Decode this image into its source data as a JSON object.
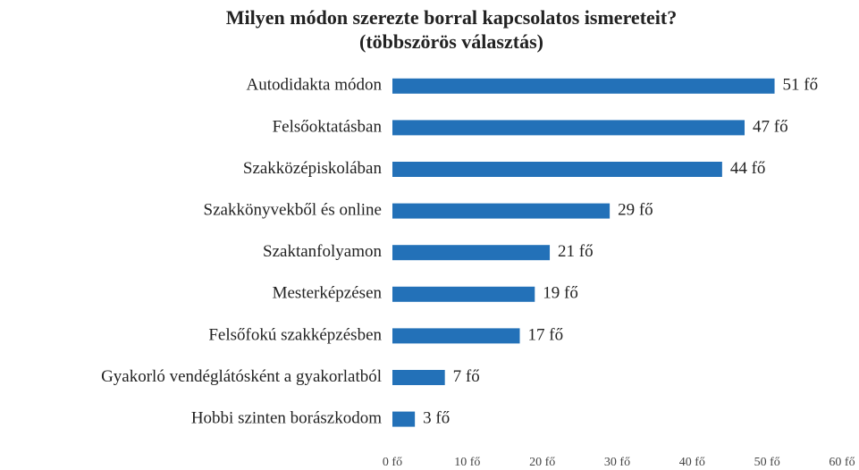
{
  "chart_data": {
    "type": "bar",
    "orientation": "horizontal",
    "title": "Milyen módon szerezte borral kapcsolatos ismereteit?",
    "subtitle": "(többszörös választás)",
    "categories": [
      "Autodidakta módon",
      "Felsőoktatásban",
      "Szakközépiskolában",
      "Szakkönyvekből és online",
      "Szaktanfolyamon",
      "Mesterképzésen",
      "Felsőfokú szakképzésben",
      "Gyakorló vendéglátósként a gyakorlatból",
      "Hobbi szinten borászkodom"
    ],
    "values": [
      51,
      47,
      44,
      29,
      21,
      19,
      17,
      7,
      3
    ],
    "value_labels": [
      "51 fő",
      "47 fő",
      "44 fő",
      "29 fő",
      "21 fő",
      "19 fő",
      "17 fő",
      "7 fő",
      "3 fő"
    ],
    "color": "#2371b8",
    "xlim": [
      0,
      60
    ],
    "xticks": [
      {
        "value": 0,
        "label": "0 fő"
      },
      {
        "value": 10,
        "label": "10 fő"
      },
      {
        "value": 20,
        "label": "20 fő"
      },
      {
        "value": 30,
        "label": "30 fő"
      },
      {
        "value": 40,
        "label": "40 fő"
      },
      {
        "value": 50,
        "label": "50 fő"
      },
      {
        "value": 60,
        "label": "60 fő"
      }
    ],
    "grid": false
  }
}
